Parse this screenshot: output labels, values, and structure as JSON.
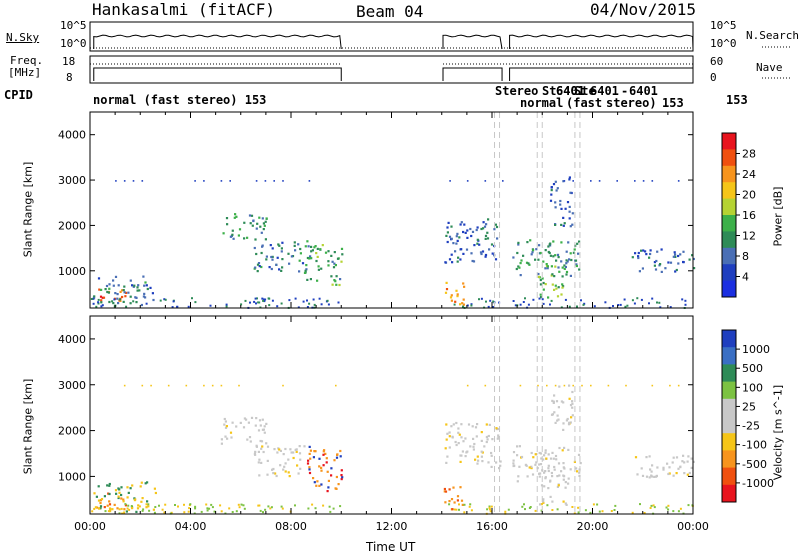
{
  "header": {
    "station": "Hankasalmi (fitACF)",
    "beam": "Beam 04",
    "date": "04/Nov/2015"
  },
  "strip_nsky": {
    "left_label": "N.Sky",
    "right_label": "N.Search",
    "left_ticks": [
      "10^5",
      "10^0"
    ],
    "right_ticks": [
      "10^5",
      "10^0"
    ]
  },
  "strip_freq": {
    "left_label_1": "Freq.",
    "left_label_2": "[MHz]",
    "right_label": "Nave",
    "left_ticks": [
      "18",
      "8"
    ],
    "right_ticks": [
      "60",
      "0"
    ]
  },
  "cpid": {
    "label": "CPID",
    "entries": [
      {
        "text": "normal (fast stereo) 153"
      },
      {
        "text": "Stereo"
      },
      {
        "text": "St"
      },
      {
        "text": "6401"
      },
      {
        "text": "Ste"
      },
      {
        "text": "6401"
      },
      {
        "text": "6401"
      },
      {
        "text": "-"
      },
      {
        "text": "6401"
      },
      {
        "text": "normal"
      },
      {
        "text": "(fast"
      },
      {
        "text": "stereo)"
      },
      {
        "text": "153"
      },
      {
        "text": "153"
      }
    ]
  },
  "power_panel": {
    "ylabel": "Slant Range [km]",
    "cbar_label": "Power [dB]",
    "cbar_ticks": [
      "28",
      "24",
      "20",
      "16",
      "12",
      "8",
      "4"
    ],
    "cbar_colors": [
      "#e8141e",
      "#f0500f",
      "#f7941d",
      "#f5c518",
      "#b5d333",
      "#3cb049",
      "#2e8b57",
      "#4a6fb5",
      "#1f3fbf",
      "#1b2fe0"
    ]
  },
  "velocity_panel": {
    "ylabel": "Slant Range [km]",
    "cbar_label": "Velocity [m s^-1]",
    "cbar_ticks": [
      "1000",
      "500",
      "100",
      "25",
      "-25",
      "-100",
      "-500",
      "-1000"
    ],
    "cbar_colors": [
      "#1f3fbf",
      "#3a6fc4",
      "#2e8b57",
      "#7cc242",
      "#c8c8c8",
      "#c8c8c8",
      "#f5c518",
      "#f7941d",
      "#f0500f",
      "#e8141e"
    ]
  },
  "xaxis": {
    "label": "Time UT",
    "ticks": [
      "00:00",
      "04:00",
      "08:00",
      "12:00",
      "16:00",
      "20:00",
      "00:00"
    ]
  },
  "chart_data": [
    {
      "type": "line",
      "panel": "N.Sky / N.Search",
      "x_unit": "hour UT",
      "xlim": [
        0,
        24
      ],
      "series": [
        {
          "segments": [
            [
              0.15,
              10.0
            ],
            [
              14.05,
              16.4
            ],
            [
              16.7,
              24.0
            ]
          ],
          "level": "high"
        }
      ]
    },
    {
      "type": "line",
      "panel": "Freq / Nave",
      "x_unit": "hour UT",
      "xlim": [
        0,
        24
      ],
      "freq_segments": [
        [
          0.15,
          10.0
        ],
        [
          14.05,
          16.4
        ],
        [
          16.7,
          24.0
        ]
      ]
    },
    {
      "type": "heatmap",
      "panel": "Power",
      "ylabel": "Slant Range [km]",
      "xlim": [
        0,
        24
      ],
      "ylim": [
        180,
        4500
      ],
      "yticks": [
        1000,
        2000,
        3000,
        4000
      ],
      "clim": [
        0,
        30
      ],
      "blobs": [
        {
          "t0": 0.1,
          "t1": 1.4,
          "r0": 300,
          "r1": 650,
          "c": 26
        },
        {
          "t0": 0.1,
          "t1": 2.6,
          "r0": 250,
          "r1": 900,
          "c": 8
        },
        {
          "t0": 5.2,
          "t1": 7.0,
          "r0": 1700,
          "r1": 2300,
          "c": 10
        },
        {
          "t0": 6.5,
          "t1": 8.8,
          "r0": 1000,
          "r1": 1700,
          "c": 8
        },
        {
          "t0": 8.5,
          "t1": 10.0,
          "r0": 700,
          "r1": 1600,
          "c": 12
        },
        {
          "t0": 14.05,
          "t1": 14.9,
          "r0": 250,
          "r1": 800,
          "c": 22
        },
        {
          "t0": 14.1,
          "t1": 16.3,
          "r0": 1200,
          "r1": 2200,
          "c": 6
        },
        {
          "t0": 16.8,
          "t1": 19.5,
          "r0": 900,
          "r1": 1700,
          "c": 10
        },
        {
          "t0": 17.8,
          "t1": 19.0,
          "r0": 400,
          "r1": 1200,
          "c": 14
        },
        {
          "t0": 18.3,
          "t1": 19.2,
          "r0": 2000,
          "r1": 3100,
          "c": 6
        },
        {
          "t0": 21.5,
          "t1": 24.0,
          "r0": 1000,
          "r1": 1500,
          "c": 6
        }
      ]
    },
    {
      "type": "heatmap",
      "panel": "Velocity",
      "ylabel": "Slant Range [km]",
      "xlim": [
        0,
        24
      ],
      "ylim": [
        180,
        4500
      ],
      "yticks": [
        1000,
        2000,
        3000,
        4000
      ],
      "clim": [
        -1000,
        1000
      ]
    }
  ]
}
